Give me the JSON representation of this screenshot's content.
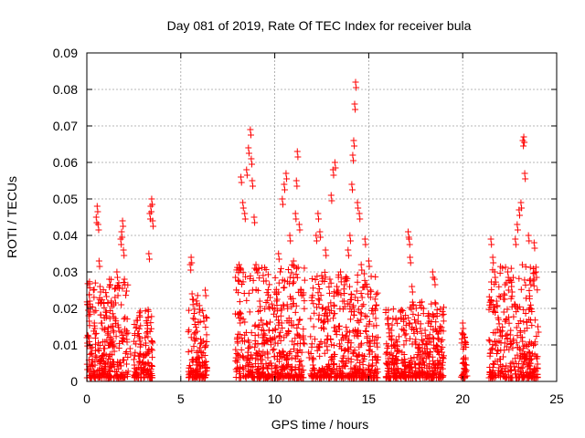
{
  "chart_data": {
    "type": "scatter",
    "title": "Day 081 of 2019, Rate Of TEC Index for receiver bula",
    "xlabel": "GPS time / hours",
    "ylabel": "ROTI / TECUs",
    "xlim": [
      0,
      25
    ],
    "ylim": [
      0,
      0.09
    ],
    "x_ticks": [
      0,
      5,
      10,
      15,
      20,
      25
    ],
    "x_tick_labels": [
      "0",
      "5",
      "10",
      "15",
      "20",
      "25"
    ],
    "y_ticks": [
      0,
      0.01,
      0.02,
      0.03,
      0.04,
      0.05,
      0.06,
      0.07,
      0.08,
      0.09
    ],
    "y_tick_labels": [
      "0",
      "0.01",
      "0.02",
      "0.03",
      "0.04",
      "0.05",
      "0.06",
      "0.07",
      "0.08",
      "0.09"
    ],
    "grid": true,
    "grid_style": "dotted",
    "marker": "+",
    "marker_color": "#ff0000",
    "series": [
      {
        "points": [
          [
            0.0,
            0.012
          ],
          [
            0.05,
            0.021
          ],
          [
            0.1,
            0.018
          ],
          [
            0.15,
            0.022
          ],
          [
            0.2,
            0.009
          ],
          [
            0.3,
            0.006
          ],
          [
            0.4,
            0.016
          ],
          [
            0.5,
            0.045
          ],
          [
            0.55,
            0.048
          ],
          [
            0.6,
            0.043
          ],
          [
            0.65,
            0.033
          ],
          [
            0.7,
            0.026
          ],
          [
            0.8,
            0.016
          ],
          [
            0.9,
            0.009
          ],
          [
            1.0,
            0.019
          ],
          [
            1.2,
            0.028
          ],
          [
            1.3,
            0.022
          ],
          [
            1.4,
            0.015
          ],
          [
            1.5,
            0.023
          ],
          [
            1.6,
            0.03
          ],
          [
            1.7,
            0.027
          ],
          [
            1.8,
            0.039
          ],
          [
            1.85,
            0.041
          ],
          [
            1.9,
            0.044
          ],
          [
            1.95,
            0.036
          ],
          [
            2.0,
            0.028
          ],
          [
            2.1,
            0.013
          ],
          [
            2.3,
            0.009
          ],
          [
            2.5,
            0.006
          ],
          [
            2.8,
            0.007
          ],
          [
            3.0,
            0.005
          ],
          [
            3.1,
            0.012
          ],
          [
            3.2,
            0.016
          ],
          [
            3.3,
            0.035
          ],
          [
            3.35,
            0.046
          ],
          [
            3.4,
            0.048
          ],
          [
            3.45,
            0.05
          ],
          [
            3.5,
            0.044
          ],
          [
            5.5,
            0.032
          ],
          [
            5.55,
            0.034
          ],
          [
            5.6,
            0.024
          ],
          [
            5.7,
            0.013
          ],
          [
            5.8,
            0.006
          ],
          [
            6.0,
            0.004
          ],
          [
            6.2,
            0.018
          ],
          [
            6.3,
            0.025
          ],
          [
            8.0,
            0.012
          ],
          [
            8.1,
            0.032
          ],
          [
            8.2,
            0.056
          ],
          [
            8.3,
            0.049
          ],
          [
            8.4,
            0.046
          ],
          [
            8.5,
            0.058
          ],
          [
            8.6,
            0.064
          ],
          [
            8.7,
            0.069
          ],
          [
            8.75,
            0.061
          ],
          [
            8.8,
            0.055
          ],
          [
            8.9,
            0.045
          ],
          [
            9.0,
            0.032
          ],
          [
            9.2,
            0.022
          ],
          [
            9.4,
            0.012
          ],
          [
            9.6,
            0.008
          ],
          [
            9.8,
            0.005
          ],
          [
            10.0,
            0.012
          ],
          [
            10.1,
            0.024
          ],
          [
            10.2,
            0.035
          ],
          [
            10.4,
            0.05
          ],
          [
            10.5,
            0.054
          ],
          [
            10.6,
            0.057
          ],
          [
            10.8,
            0.04
          ],
          [
            11.0,
            0.033
          ],
          [
            11.1,
            0.046
          ],
          [
            11.15,
            0.055
          ],
          [
            11.2,
            0.063
          ],
          [
            11.3,
            0.043
          ],
          [
            11.4,
            0.025
          ],
          [
            11.5,
            0.012
          ],
          [
            11.8,
            0.008
          ],
          [
            12.0,
            0.006
          ],
          [
            12.2,
            0.04
          ],
          [
            12.3,
            0.046
          ],
          [
            12.4,
            0.041
          ],
          [
            12.5,
            0.029
          ],
          [
            12.7,
            0.036
          ],
          [
            12.8,
            0.018
          ],
          [
            13.0,
            0.051
          ],
          [
            13.1,
            0.058
          ],
          [
            13.2,
            0.06
          ],
          [
            13.3,
            0.026
          ],
          [
            13.5,
            0.03
          ],
          [
            13.7,
            0.022
          ],
          [
            13.9,
            0.036
          ],
          [
            14.0,
            0.04
          ],
          [
            14.1,
            0.054
          ],
          [
            14.15,
            0.062
          ],
          [
            14.2,
            0.066
          ],
          [
            14.25,
            0.076
          ],
          [
            14.3,
            0.082
          ],
          [
            14.4,
            0.049
          ],
          [
            14.5,
            0.046
          ],
          [
            14.6,
            0.032
          ],
          [
            14.8,
            0.039
          ],
          [
            15.0,
            0.033
          ],
          [
            15.2,
            0.02
          ],
          [
            15.4,
            0.012
          ],
          [
            16.0,
            0.017
          ],
          [
            16.2,
            0.014
          ],
          [
            16.5,
            0.01
          ],
          [
            16.7,
            0.019
          ],
          [
            16.9,
            0.006
          ],
          [
            17.1,
            0.041
          ],
          [
            17.15,
            0.039
          ],
          [
            17.2,
            0.034
          ],
          [
            17.3,
            0.026
          ],
          [
            17.5,
            0.016
          ],
          [
            17.7,
            0.01
          ],
          [
            18.0,
            0.014
          ],
          [
            18.2,
            0.018
          ],
          [
            18.4,
            0.03
          ],
          [
            18.5,
            0.028
          ],
          [
            18.7,
            0.013
          ],
          [
            18.9,
            0.008
          ],
          [
            20.0,
            0.016
          ],
          [
            20.1,
            0.012
          ],
          [
            20.15,
            0.006
          ],
          [
            20.2,
            0.003
          ],
          [
            21.5,
            0.039
          ],
          [
            21.6,
            0.034
          ],
          [
            21.7,
            0.03
          ],
          [
            21.8,
            0.022
          ],
          [
            22.0,
            0.014
          ],
          [
            22.2,
            0.024
          ],
          [
            22.4,
            0.03
          ],
          [
            22.6,
            0.026
          ],
          [
            22.8,
            0.039
          ],
          [
            22.9,
            0.043
          ],
          [
            23.0,
            0.047
          ],
          [
            23.1,
            0.049
          ],
          [
            23.2,
            0.066
          ],
          [
            23.25,
            0.067
          ],
          [
            23.3,
            0.057
          ],
          [
            23.5,
            0.04
          ],
          [
            23.6,
            0.028
          ],
          [
            23.8,
            0.038
          ],
          [
            23.9,
            0.03
          ],
          [
            24.0,
            0.015
          ]
        ]
      }
    ],
    "clusters": [
      {
        "x": [
          0.0,
          2.2
        ],
        "ymax": 0.028
      },
      {
        "x": [
          2.5,
          3.5
        ],
        "ymax": 0.02
      },
      {
        "x": [
          5.4,
          6.4
        ],
        "ymax": 0.024
      },
      {
        "x": [
          7.9,
          11.6
        ],
        "ymax": 0.032
      },
      {
        "x": [
          11.9,
          15.5
        ],
        "ymax": 0.03
      },
      {
        "x": [
          15.9,
          17.0
        ],
        "ymax": 0.02
      },
      {
        "x": [
          17.1,
          19.0
        ],
        "ymax": 0.022
      },
      {
        "x": [
          19.9,
          20.2
        ],
        "ymax": 0.014
      },
      {
        "x": [
          21.4,
          24.0
        ],
        "ymax": 0.032
      }
    ]
  }
}
